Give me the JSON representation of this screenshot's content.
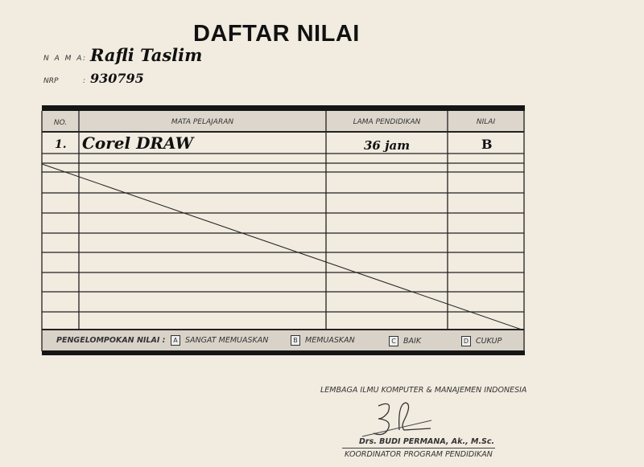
{
  "title": "DAFTAR NILAI",
  "student": {
    "name_label": "N A M A",
    "name_sep": ":",
    "name_value": "Rafli Taslim",
    "nrp_label": "NRP",
    "nrp_sep": ":",
    "nrp_value": "930795"
  },
  "table": {
    "headers": [
      "NO.",
      "MATA PELAJARAN",
      "LAMA PENDIDIKAN",
      "NILAI"
    ],
    "rows": [
      {
        "no": "1.",
        "subject": "Corel DRAW",
        "duration": "36 jam",
        "grade": "B"
      }
    ]
  },
  "legend": {
    "label": "PENGELOMPOKAN NILAI :",
    "items": [
      {
        "code": "A",
        "text": "SANGAT MEMUASKAN"
      },
      {
        "code": "B",
        "text": "MEMUASKAN"
      },
      {
        "code": "C",
        "text": "BAIK"
      },
      {
        "code": "D",
        "text": "CUKUP"
      }
    ]
  },
  "footer": {
    "institution": "LEMBAGA ILMU KOMPUTER & MANAJEMEN INDONESIA",
    "signatory": "Drs. BUDI PERMANA, Ak., M.Sc.",
    "position": "KOORDINATOR PROGRAM PENDIDIKAN"
  },
  "colors": {
    "paper": "#f1ebe0",
    "ink": "#1a1a1a",
    "header_fill": "#dcd6cc"
  }
}
